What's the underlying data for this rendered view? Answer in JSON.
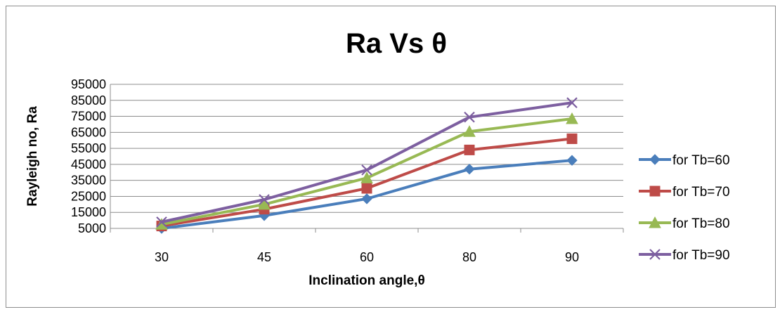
{
  "chart_data": {
    "type": "line",
    "title": "Ra Vs θ",
    "xlabel": "Inclination angle,θ",
    "ylabel": "Rayleigh no, Ra",
    "categories": [
      "30",
      "45",
      "60",
      "80",
      "90"
    ],
    "ylim": [
      5000,
      95000
    ],
    "yticks": [
      "5000",
      "15000",
      "25000",
      "35000",
      "45000",
      "55000",
      "65000",
      "75000",
      "85000",
      "95000"
    ],
    "grid": true,
    "legend_position": "right",
    "series": [
      {
        "name": "for Tb=60",
        "color": "#4a7ebb",
        "marker": "diamond",
        "values": [
          5000,
          13000,
          23500,
          42000,
          47500
        ]
      },
      {
        "name": "for Tb=70",
        "color": "#be4b48",
        "marker": "square",
        "values": [
          6500,
          17000,
          30000,
          54000,
          61000
        ]
      },
      {
        "name": "for Tb=80",
        "color": "#98b954",
        "marker": "triangle",
        "values": [
          7500,
          20000,
          36500,
          65500,
          73500
        ]
      },
      {
        "name": "for Tb=90",
        "color": "#7d5fa0",
        "marker": "x",
        "values": [
          9000,
          23000,
          41500,
          74500,
          83500
        ]
      }
    ]
  }
}
